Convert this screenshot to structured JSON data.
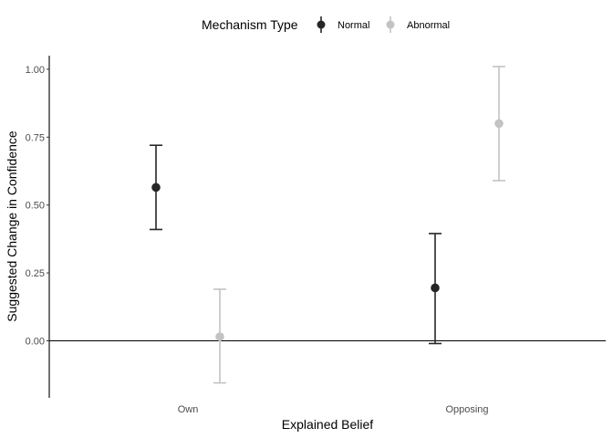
{
  "chart_data": {
    "type": "scatter",
    "subtype": "point-with-error-bars",
    "title": "",
    "xlabel": "Explained Belief",
    "ylabel": "Suggested Change in Confidence",
    "categories": [
      "Own",
      "Opposing"
    ],
    "ylim": [
      -0.21,
      1.05
    ],
    "yticks": [
      0.0,
      0.25,
      0.5,
      0.75,
      1.0
    ],
    "ytick_labels": [
      "0.00",
      "0.25",
      "0.50",
      "0.75",
      "1.00"
    ],
    "reference_line_y": 0,
    "grid": false,
    "legend": {
      "title": "Mechanism Type",
      "position": "top"
    },
    "series": [
      {
        "name": "Normal",
        "color": "#262626",
        "values": [
          0.565,
          0.195
        ],
        "lower": [
          0.41,
          -0.01
        ],
        "upper": [
          0.72,
          0.395
        ]
      },
      {
        "name": "Abnormal",
        "color": "#c3c3c3",
        "values": [
          0.015,
          0.8
        ],
        "lower": [
          -0.155,
          0.59
        ],
        "upper": [
          0.19,
          1.01
        ]
      }
    ]
  }
}
